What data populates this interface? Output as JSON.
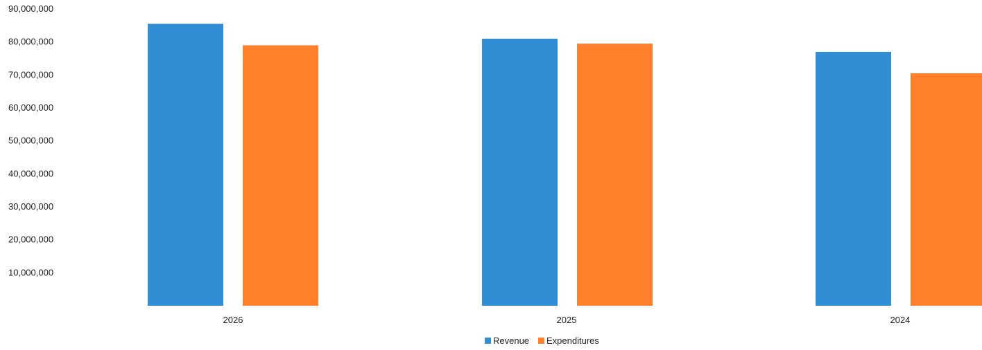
{
  "chart_data": {
    "type": "bar",
    "categories": [
      "2026",
      "2025",
      "2024"
    ],
    "series": [
      {
        "name": "Revenue",
        "color": "#2F8ED4",
        "values": [
          85500000,
          81000000,
          77000000
        ]
      },
      {
        "name": "Expenditures",
        "color": "#FF7F2A",
        "values": [
          79000000,
          79500000,
          70500000
        ]
      }
    ],
    "ylim": [
      0,
      90000000
    ],
    "yticks": [
      0,
      10000000,
      20000000,
      30000000,
      40000000,
      50000000,
      60000000,
      70000000,
      80000000,
      90000000
    ],
    "ytick_labels": [
      "",
      "10,000,000",
      "20,000,000",
      "30,000,000",
      "40,000,000",
      "50,000,000",
      "60,000,000",
      "70,000,000",
      "80,000,000",
      "90,000,000"
    ],
    "grid": false,
    "legend_position": "bottom-center"
  }
}
